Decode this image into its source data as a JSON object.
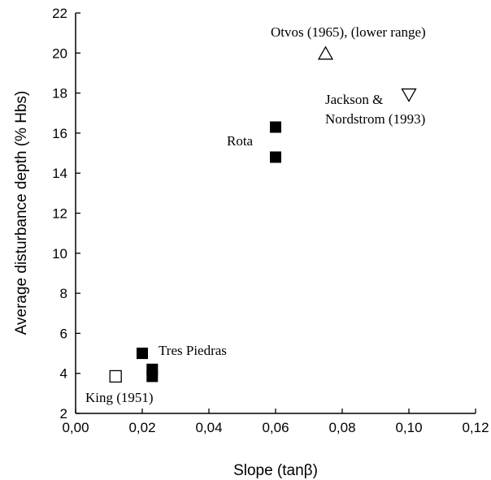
{
  "chart_data": {
    "type": "scatter",
    "xlabel": "Slope (tanβ)",
    "ylabel": "Average disturbance depth (% Hbs)",
    "xlim": [
      0,
      0.12
    ],
    "ylim": [
      2,
      22
    ],
    "x_ticks": [
      0.0,
      0.02,
      0.04,
      0.06,
      0.08,
      0.1,
      0.12
    ],
    "x_tick_labels": [
      "0,00",
      "0,02",
      "0,04",
      "0,06",
      "0,08",
      "0,10",
      "0,12"
    ],
    "y_ticks": [
      2,
      4,
      6,
      8,
      10,
      12,
      14,
      16,
      18,
      20,
      22
    ],
    "y_tick_labels": [
      "2",
      "4",
      "6",
      "8",
      "10",
      "12",
      "14",
      "16",
      "18",
      "20",
      "22"
    ],
    "grid": false,
    "series": [
      {
        "marker": "filled-square",
        "points": [
          {
            "x": 0.02,
            "y": 5.0
          },
          {
            "x": 0.023,
            "y": 4.2
          },
          {
            "x": 0.023,
            "y": 3.85
          },
          {
            "x": 0.06,
            "y": 16.3
          },
          {
            "x": 0.06,
            "y": 14.8
          }
        ]
      },
      {
        "marker": "open-square",
        "points": [
          {
            "x": 0.012,
            "y": 3.85
          }
        ]
      },
      {
        "marker": "open-triangle-up",
        "points": [
          {
            "x": 0.075,
            "y": 20.0
          }
        ]
      },
      {
        "marker": "open-triangle-down",
        "points": [
          {
            "x": 0.1,
            "y": 17.9
          }
        ]
      }
    ],
    "annotations": [
      {
        "text": "Otvos (1965),  (lower range)"
      },
      {
        "text": "Jackson &"
      },
      {
        "text": "Nordstrom (1993)"
      },
      {
        "text": "Rota"
      },
      {
        "text": "Tres Piedras"
      },
      {
        "text": "King (1951)"
      }
    ]
  }
}
